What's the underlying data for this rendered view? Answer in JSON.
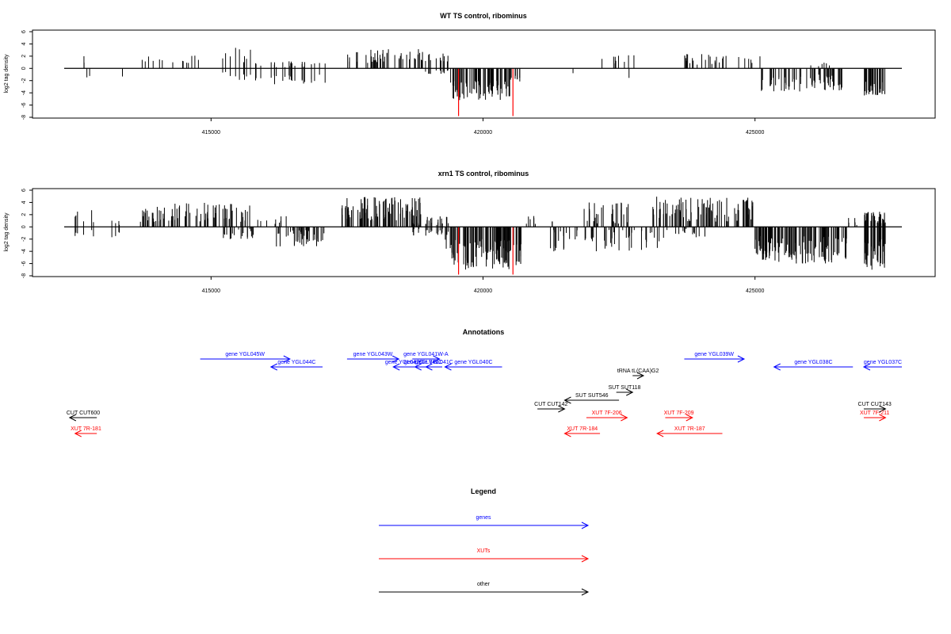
{
  "colors": {
    "genes": "#0000ff",
    "xuts": "#ff0000",
    "other": "#000000",
    "highlight": "#ff0000",
    "bars": "#000000"
  },
  "panels": [
    {
      "title": "WT TS control, ribominus",
      "ylabel": "log2 tag density"
    },
    {
      "title": "xrn1 TS control, ribominus",
      "ylabel": "log2 tag density"
    }
  ],
  "annotations_title": "Annotations",
  "legend": {
    "title": "Legend",
    "entries": [
      {
        "label": "genes",
        "color": "#0000ff"
      },
      {
        "label": "XUTs",
        "color": "#ff0000"
      },
      {
        "label": "other",
        "color": "#000000"
      }
    ]
  },
  "chart_data": [
    {
      "type": "bar",
      "title": "WT TS control, ribominus",
      "ylabel": "log2 tag density",
      "xlabel": "",
      "xlim": [
        412300,
        427700
      ],
      "ylim": [
        -8,
        6
      ],
      "xticks": [
        "415000",
        "420000",
        "425000"
      ],
      "xtick_values": [
        415000,
        420000,
        425000
      ],
      "yticks": [
        "-8",
        "-6",
        "-4",
        "-2",
        "0",
        "2",
        "4",
        "6"
      ],
      "ytick_values": [
        -8,
        -6,
        -4,
        -2,
        0,
        2,
        4,
        6
      ],
      "highlight_x": [
        419550,
        420550
      ],
      "highlight_y": [
        -7.8,
        -7.8
      ],
      "segments": [
        {
          "from": 412600,
          "to": 412700,
          "n": 2,
          "pos": [
            0.5,
            2.0
          ],
          "neg": [
            0,
            0
          ]
        },
        {
          "from": 412700,
          "to": 412800,
          "n": 2,
          "pos": [
            0,
            0
          ],
          "neg": [
            0.5,
            1.6
          ]
        },
        {
          "from": 413300,
          "to": 413400,
          "n": 1,
          "pos": [
            0,
            0
          ],
          "neg": [
            0.5,
            1.5
          ]
        },
        {
          "from": 413600,
          "to": 414800,
          "n": 14,
          "pos": [
            0.6,
            2.3
          ],
          "neg": [
            0,
            0
          ]
        },
        {
          "from": 415200,
          "to": 415800,
          "n": 9,
          "pos": [
            1.0,
            3.5
          ],
          "neg": [
            0.4,
            2.5
          ]
        },
        {
          "from": 415800,
          "to": 417100,
          "n": 24,
          "pos": [
            0.2,
            1.2
          ],
          "neg": [
            0.8,
            2.6
          ]
        },
        {
          "from": 417500,
          "to": 418900,
          "n": 48,
          "pos": [
            0.8,
            3.2
          ],
          "neg": [
            0,
            0
          ]
        },
        {
          "from": 418900,
          "to": 419400,
          "n": 12,
          "pos": [
            0.8,
            2.5
          ],
          "neg": [
            0.3,
            1.0
          ]
        },
        {
          "from": 419400,
          "to": 420500,
          "n": 70,
          "pos": [
            0,
            0
          ],
          "neg": [
            2.0,
            5.2
          ]
        },
        {
          "from": 420500,
          "to": 420700,
          "n": 8,
          "pos": [
            0,
            0
          ],
          "neg": [
            1.0,
            2.5
          ]
        },
        {
          "from": 421600,
          "to": 421700,
          "n": 1,
          "pos": [
            0,
            0
          ],
          "neg": [
            0.6,
            1.2
          ]
        },
        {
          "from": 422100,
          "to": 422800,
          "n": 10,
          "pos": [
            0.6,
            2.2
          ],
          "neg": [
            0,
            0
          ]
        },
        {
          "from": 422600,
          "to": 422700,
          "n": 1,
          "pos": [
            0,
            0
          ],
          "neg": [
            1.2,
            2.5
          ]
        },
        {
          "from": 423700,
          "to": 425200,
          "n": 28,
          "pos": [
            0.6,
            2.4
          ],
          "neg": [
            0,
            0
          ]
        },
        {
          "from": 425100,
          "to": 426600,
          "n": 60,
          "pos": [
            0,
            0
          ],
          "neg": [
            1.0,
            3.8
          ]
        },
        {
          "from": 426000,
          "to": 426400,
          "n": 6,
          "pos": [
            0.3,
            1.0
          ],
          "neg": [
            0,
            0
          ]
        },
        {
          "from": 427000,
          "to": 427400,
          "n": 30,
          "pos": [
            0,
            0
          ],
          "neg": [
            2.0,
            4.5
          ]
        }
      ]
    },
    {
      "type": "bar",
      "title": "xrn1 TS control, ribominus",
      "ylabel": "log2 tag density",
      "xlabel": "",
      "xlim": [
        412300,
        427700
      ],
      "ylim": [
        -8,
        6
      ],
      "xticks": [
        "415000",
        "420000",
        "425000"
      ],
      "xtick_values": [
        415000,
        420000,
        425000
      ],
      "yticks": [
        "-8",
        "-6",
        "-4",
        "-2",
        "0",
        "2",
        "4",
        "6"
      ],
      "ytick_values": [
        -8,
        -6,
        -4,
        -2,
        0,
        2,
        4,
        6
      ],
      "highlight_x": [
        419550,
        420550
      ],
      "highlight_y": [
        -7.8,
        -7.8
      ],
      "segments": [
        {
          "from": 412500,
          "to": 412900,
          "n": 6,
          "pos": [
            0.5,
            3.0
          ],
          "neg": [
            0.5,
            2.5
          ]
        },
        {
          "from": 413100,
          "to": 413400,
          "n": 4,
          "pos": [
            0.3,
            1.5
          ],
          "neg": [
            0.5,
            2.5
          ]
        },
        {
          "from": 413700,
          "to": 415800,
          "n": 80,
          "pos": [
            0.8,
            4.0
          ],
          "neg": [
            0,
            0
          ]
        },
        {
          "from": 415200,
          "to": 415800,
          "n": 20,
          "pos": [
            0,
            0
          ],
          "neg": [
            0.3,
            2.0
          ]
        },
        {
          "from": 415800,
          "to": 416400,
          "n": 10,
          "pos": [
            0.4,
            1.8
          ],
          "neg": [
            0,
            0
          ]
        },
        {
          "from": 416200,
          "to": 417100,
          "n": 40,
          "pos": [
            0,
            0
          ],
          "neg": [
            0.5,
            3.4
          ]
        },
        {
          "from": 417400,
          "to": 418900,
          "n": 90,
          "pos": [
            1.0,
            5.0
          ],
          "neg": [
            0,
            0
          ]
        },
        {
          "from": 418700,
          "to": 419400,
          "n": 25,
          "pos": [
            0.3,
            2.0
          ],
          "neg": [
            0.3,
            1.5
          ]
        },
        {
          "from": 419300,
          "to": 420700,
          "n": 110,
          "pos": [
            0,
            0
          ],
          "neg": [
            2.0,
            7.0
          ]
        },
        {
          "from": 420700,
          "to": 421300,
          "n": 8,
          "pos": [
            0.3,
            2.0
          ],
          "neg": [
            0,
            0
          ]
        },
        {
          "from": 421200,
          "to": 422100,
          "n": 25,
          "pos": [
            0,
            0
          ],
          "neg": [
            0.5,
            4.5
          ]
        },
        {
          "from": 421800,
          "to": 422700,
          "n": 30,
          "pos": [
            0.5,
            4.0
          ],
          "neg": [
            0,
            0
          ]
        },
        {
          "from": 422200,
          "to": 423300,
          "n": 30,
          "pos": [
            0,
            0
          ],
          "neg": [
            0.5,
            4.0
          ]
        },
        {
          "from": 423100,
          "to": 425000,
          "n": 90,
          "pos": [
            0.8,
            5.0
          ],
          "neg": [
            0,
            0
          ]
        },
        {
          "from": 423300,
          "to": 424100,
          "n": 15,
          "pos": [
            0,
            0
          ],
          "neg": [
            0.3,
            2.0
          ]
        },
        {
          "from": 425000,
          "to": 426700,
          "n": 120,
          "pos": [
            0,
            0
          ],
          "neg": [
            1.5,
            6.0
          ]
        },
        {
          "from": 426700,
          "to": 427000,
          "n": 5,
          "pos": [
            0.3,
            1.5
          ],
          "neg": [
            0,
            0
          ]
        },
        {
          "from": 427000,
          "to": 427400,
          "n": 40,
          "pos": [
            0.5,
            2.5
          ],
          "neg": [
            2.0,
            7.0
          ]
        }
      ]
    }
  ],
  "annotations": [
    {
      "label": "gene YGL045W",
      "type": "gene",
      "strand": "+",
      "start": 414800,
      "end": 416450,
      "row": 1
    },
    {
      "label": "gene YGL044C",
      "type": "gene",
      "strand": "-",
      "start": 416100,
      "end": 417050,
      "row": 2
    },
    {
      "label": "gene YGL043W",
      "type": "gene",
      "strand": "+",
      "start": 417500,
      "end": 418450,
      "row": 1
    },
    {
      "label": "gene YGL041W-A",
      "type": "gene",
      "strand": "+",
      "start": 418700,
      "end": 419200,
      "row": 1
    },
    {
      "label": "gene YGL042C",
      "type": "gene",
      "strand": "-",
      "start": 418350,
      "end": 418750,
      "row": 2
    },
    {
      "label": "gene YGL041C",
      "type": "gene",
      "strand": "-",
      "start": 418750,
      "end": 419050,
      "row": 2
    },
    {
      "label": "gene YGL041C",
      "type": "gene",
      "strand": "-",
      "start": 418950,
      "end": 419250,
      "row": 2
    },
    {
      "label": "gene YGL040C",
      "type": "gene",
      "strand": "-",
      "start": 419300,
      "end": 420350,
      "row": 2
    },
    {
      "label": "gene YGL039W",
      "type": "gene",
      "strand": "+",
      "start": 423700,
      "end": 424800,
      "row": 1
    },
    {
      "label": "gene YGL038C",
      "type": "gene",
      "strand": "-",
      "start": 425350,
      "end": 426800,
      "row": 2
    },
    {
      "label": "gene YGL037C",
      "type": "gene",
      "strand": "-",
      "start": 427000,
      "end": 427700,
      "row": 2
    },
    {
      "label": "tRNA tL(CAA)G2",
      "type": "other",
      "strand": "+",
      "start": 422750,
      "end": 422950,
      "row": 3
    },
    {
      "label": "SUT SUT118",
      "type": "other",
      "strand": "+",
      "start": 422450,
      "end": 422750,
      "row": 4
    },
    {
      "label": "SUT SUT546",
      "type": "other",
      "strand": "-",
      "start": 421500,
      "end": 422500,
      "row": 5
    },
    {
      "label": "CUT CUT142",
      "type": "other",
      "strand": "+",
      "start": 421000,
      "end": 421500,
      "row": 6
    },
    {
      "label": "CUT CUT600",
      "type": "other",
      "strand": "-",
      "start": 412400,
      "end": 412900,
      "row": 7
    },
    {
      "label": "CUT CUT143",
      "type": "other",
      "strand": "+",
      "start": 427000,
      "end": 427400,
      "row": 6
    },
    {
      "label": "XUT 7F-206",
      "type": "xut",
      "strand": "+",
      "start": 421900,
      "end": 422650,
      "row": 7
    },
    {
      "label": "XUT 7F-209",
      "type": "xut",
      "strand": "+",
      "start": 423350,
      "end": 423850,
      "row": 7
    },
    {
      "label": "XUT 7F-211",
      "type": "xut",
      "strand": "+",
      "start": 427000,
      "end": 427400,
      "row": 7
    },
    {
      "label": "XUT 7R-181",
      "type": "xut",
      "strand": "-",
      "start": 412500,
      "end": 412900,
      "row": 8
    },
    {
      "label": "XUT 7R-184",
      "type": "xut",
      "strand": "-",
      "start": 421500,
      "end": 422150,
      "row": 8
    },
    {
      "label": "XUT 7R-187",
      "type": "xut",
      "strand": "-",
      "start": 423200,
      "end": 424400,
      "row": 8
    }
  ]
}
